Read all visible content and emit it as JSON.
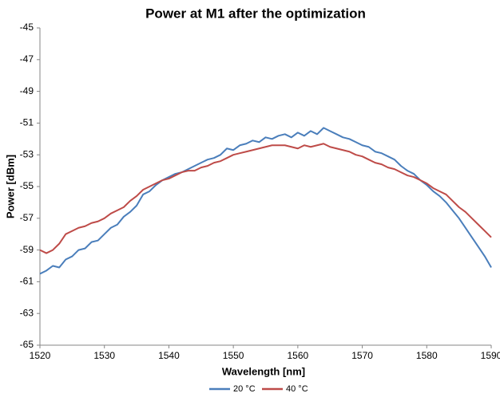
{
  "chart_data": {
    "type": "line",
    "title": "Power at M1 after the optimization",
    "x_label": "Wavelength [nm]",
    "y_label": "Power [dBm]",
    "x": [
      1520,
      1521,
      1522,
      1523,
      1524,
      1525,
      1526,
      1527,
      1528,
      1529,
      1530,
      1531,
      1532,
      1533,
      1534,
      1535,
      1536,
      1537,
      1538,
      1539,
      1540,
      1541,
      1542,
      1543,
      1544,
      1545,
      1546,
      1547,
      1548,
      1549,
      1550,
      1551,
      1552,
      1553,
      1554,
      1555,
      1556,
      1557,
      1558,
      1559,
      1560,
      1561,
      1562,
      1563,
      1564,
      1565,
      1566,
      1567,
      1568,
      1569,
      1570,
      1571,
      1572,
      1573,
      1574,
      1575,
      1576,
      1577,
      1578,
      1579,
      1580,
      1581,
      1582,
      1583,
      1584,
      1585,
      1586,
      1587,
      1588,
      1589,
      1590
    ],
    "series": [
      {
        "name": "20 °C",
        "color": "#4a7ebb",
        "values": [
          -60.5,
          -60.3,
          -60.0,
          -60.1,
          -59.6,
          -59.4,
          -59.0,
          -58.9,
          -58.5,
          -58.4,
          -58.0,
          -57.6,
          -57.4,
          -56.9,
          -56.6,
          -56.2,
          -55.5,
          -55.3,
          -54.9,
          -54.6,
          -54.4,
          -54.2,
          -54.1,
          -53.9,
          -53.7,
          -53.5,
          -53.3,
          -53.2,
          -53.0,
          -52.6,
          -52.7,
          -52.4,
          -52.3,
          -52.1,
          -52.2,
          -51.9,
          -52.0,
          -51.8,
          -51.7,
          -51.9,
          -51.6,
          -51.8,
          -51.5,
          -51.7,
          -51.3,
          -51.5,
          -51.7,
          -51.9,
          -52.0,
          -52.2,
          -52.4,
          -52.5,
          -52.8,
          -52.9,
          -53.1,
          -53.3,
          -53.7,
          -54.0,
          -54.2,
          -54.6,
          -54.9,
          -55.3,
          -55.6,
          -56.0,
          -56.5,
          -57.0,
          -57.6,
          -58.2,
          -58.8,
          -59.4,
          -60.1
        ]
      },
      {
        "name": "40 °C",
        "color": "#be4b48",
        "values": [
          -59.0,
          -59.2,
          -59.0,
          -58.6,
          -58.0,
          -57.8,
          -57.6,
          -57.5,
          -57.3,
          -57.2,
          -57.0,
          -56.7,
          -56.5,
          -56.3,
          -55.9,
          -55.6,
          -55.2,
          -55.0,
          -54.8,
          -54.6,
          -54.5,
          -54.3,
          -54.1,
          -54.0,
          -54.0,
          -53.8,
          -53.7,
          -53.5,
          -53.4,
          -53.2,
          -53.0,
          -52.9,
          -52.8,
          -52.7,
          -52.6,
          -52.5,
          -52.4,
          -52.4,
          -52.4,
          -52.5,
          -52.6,
          -52.4,
          -52.5,
          -52.4,
          -52.3,
          -52.5,
          -52.6,
          -52.7,
          -52.8,
          -53.0,
          -53.1,
          -53.3,
          -53.5,
          -53.6,
          -53.8,
          -53.9,
          -54.1,
          -54.3,
          -54.4,
          -54.6,
          -54.8,
          -55.1,
          -55.3,
          -55.5,
          -55.9,
          -56.3,
          -56.6,
          -57.0,
          -57.4,
          -57.8,
          -58.2
        ]
      }
    ],
    "xlim": [
      1520,
      1590
    ],
    "xticks": [
      1520,
      1530,
      1540,
      1550,
      1560,
      1570,
      1580,
      1590
    ],
    "ylim": [
      -65,
      -45
    ],
    "yticks": [
      -65,
      -63,
      -61,
      -59,
      -57,
      -55,
      -53,
      -51,
      -49,
      -47,
      -45
    ],
    "grid": false,
    "legend": "bottom"
  }
}
